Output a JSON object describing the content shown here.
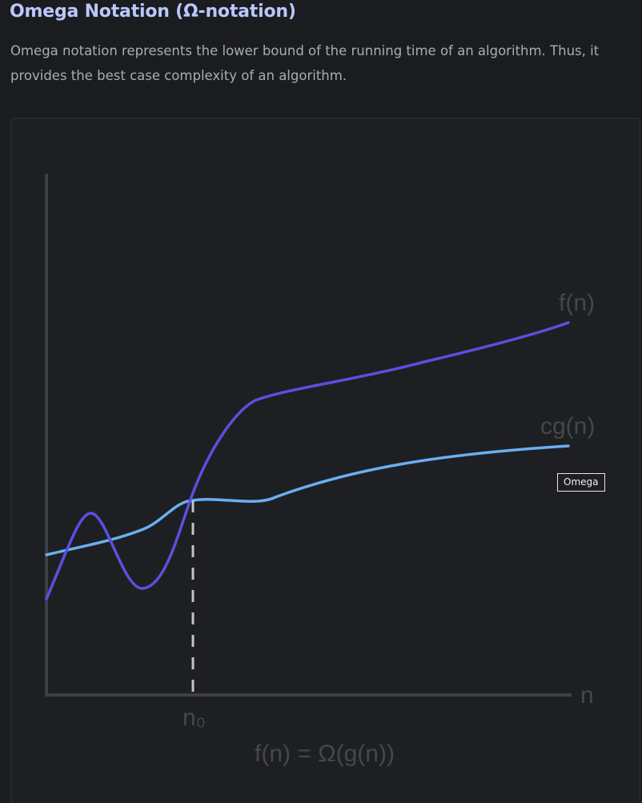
{
  "page": {
    "title": "Omega Notation (Ω-notation)",
    "description": "Omega notation represents the lower bound of the running time of an algorithm. Thus, it provides the best case complexity of an algorithm."
  },
  "diagram": {
    "curve_f_label": "f(n)",
    "curve_cg_label": "cg(n)",
    "x_axis_label": "n",
    "threshold_label": "n₀",
    "formula": "f(n) = Ω(g(n))",
    "tooltip": "Omega",
    "colors": {
      "f_curve": "#5b4fe0",
      "cg_curve": "#6aaff0",
      "axes": "#3d3f44",
      "labels": "#45474d",
      "dashed_line": "#c4c4c4"
    }
  }
}
